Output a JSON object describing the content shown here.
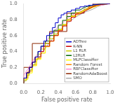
{
  "chart_data": {
    "type": "line",
    "xlabel": "False positive rate",
    "ylabel": "True positive rate",
    "xlim": [
      0.0,
      1.0
    ],
    "ylim": [
      0.0,
      1.0
    ],
    "xticks": [
      {
        "value": 0,
        "label": "0.0"
      },
      0.2,
      0.4,
      0.6,
      0.8,
      {
        "value": 1,
        "label": "1.0"
      }
    ],
    "yticks": [
      {
        "value": 0,
        "label": "0.0"
      },
      0.2,
      0.4,
      0.6,
      0.8,
      {
        "value": 1,
        "label": "1.0"
      }
    ],
    "grid": false,
    "legend": "lower right",
    "series": [
      {
        "name": "ADTree",
        "color": "#0000cc",
        "x": [
          0.0,
          0.0,
          0.033,
          0.033,
          0.066,
          0.066,
          0.1,
          0.1,
          0.133,
          0.133,
          0.166,
          0.166,
          0.2,
          0.2,
          0.233,
          0.233,
          0.266,
          0.266,
          0.3,
          0.3,
          0.333,
          0.333,
          0.366,
          0.366,
          0.4,
          0.4,
          0.433,
          0.433,
          0.466,
          0.466,
          0.5,
          0.5,
          0.55,
          0.55,
          0.6,
          0.6,
          0.65,
          0.65,
          0.7,
          0.7,
          0.75,
          0.75,
          0.8,
          0.8,
          0.85,
          0.9,
          0.95,
          1.0
        ],
        "values": [
          0.0,
          0.066,
          0.066,
          0.132,
          0.132,
          0.2,
          0.2,
          0.266,
          0.266,
          0.33,
          0.33,
          0.4,
          0.4,
          0.466,
          0.466,
          0.53,
          0.53,
          0.6,
          0.6,
          0.63,
          0.63,
          0.7,
          0.7,
          0.76,
          0.76,
          0.82,
          0.82,
          0.86,
          0.86,
          0.88,
          0.88,
          0.9,
          0.9,
          0.92,
          0.92,
          0.94,
          0.94,
          0.96,
          0.96,
          0.97,
          0.97,
          0.98,
          0.98,
          0.99,
          0.99,
          0.995,
          0.995,
          1.0
        ]
      },
      {
        "name": "K-NN",
        "color": "#cc0000",
        "x": [
          0.0,
          0.0,
          0.033,
          0.033,
          0.066,
          0.066,
          0.1,
          0.1,
          0.133,
          0.133,
          0.166,
          0.2,
          0.2,
          0.233,
          0.233,
          0.266,
          0.3,
          0.3,
          0.35,
          0.35,
          0.4,
          0.4,
          0.45,
          0.45,
          0.5,
          0.5,
          0.55,
          0.55,
          0.6,
          0.6,
          0.65,
          0.7,
          0.75,
          0.8,
          0.85,
          0.9,
          0.95,
          1.0
        ],
        "values": [
          0.0,
          0.066,
          0.066,
          0.132,
          0.132,
          0.2,
          0.2,
          0.266,
          0.266,
          0.33,
          0.33,
          0.33,
          0.4,
          0.4,
          0.466,
          0.466,
          0.466,
          0.53,
          0.53,
          0.6,
          0.6,
          0.66,
          0.66,
          0.72,
          0.72,
          0.78,
          0.78,
          0.83,
          0.83,
          0.87,
          0.87,
          0.9,
          0.93,
          0.96,
          0.98,
          0.99,
          0.995,
          1.0
        ]
      },
      {
        "name": "L1 RLR",
        "color": "#cccc00",
        "x": [
          0.0,
          0.0,
          0.033,
          0.033,
          0.066,
          0.066,
          0.1,
          0.1,
          0.133,
          0.133,
          0.166,
          0.166,
          0.2,
          0.2,
          0.25,
          0.25,
          0.3,
          0.3,
          0.35,
          0.35,
          0.4,
          0.4,
          0.45,
          0.45,
          0.5,
          0.5,
          0.55,
          0.55,
          0.6,
          0.6,
          0.65,
          0.7,
          0.75,
          0.8,
          0.85,
          0.9,
          0.95,
          1.0
        ],
        "values": [
          0.0,
          0.033,
          0.033,
          0.1,
          0.1,
          0.166,
          0.166,
          0.233,
          0.233,
          0.3,
          0.3,
          0.366,
          0.366,
          0.43,
          0.43,
          0.5,
          0.5,
          0.56,
          0.56,
          0.62,
          0.62,
          0.68,
          0.68,
          0.74,
          0.74,
          0.8,
          0.8,
          0.85,
          0.85,
          0.89,
          0.89,
          0.92,
          0.94,
          0.96,
          0.98,
          0.99,
          0.995,
          1.0
        ]
      },
      {
        "name": "L2RLR",
        "color": "#006600",
        "x": [
          0.0,
          0.0,
          0.033,
          0.033,
          0.066,
          0.066,
          0.1,
          0.1,
          0.133,
          0.133,
          0.166,
          0.166,
          0.2,
          0.2,
          0.25,
          0.25,
          0.3,
          0.3,
          0.35,
          0.35,
          0.4,
          0.4,
          0.45,
          0.45,
          0.5,
          0.5,
          0.55,
          0.55,
          0.6,
          0.6,
          0.65,
          0.7,
          0.75,
          0.8,
          0.85,
          0.9,
          0.95,
          1.0
        ],
        "values": [
          0.0,
          0.066,
          0.066,
          0.132,
          0.132,
          0.2,
          0.2,
          0.266,
          0.266,
          0.33,
          0.33,
          0.4,
          0.4,
          0.466,
          0.466,
          0.53,
          0.53,
          0.6,
          0.6,
          0.666,
          0.666,
          0.73,
          0.73,
          0.79,
          0.79,
          0.84,
          0.84,
          0.88,
          0.88,
          0.92,
          0.92,
          0.95,
          0.97,
          0.98,
          0.99,
          0.995,
          0.998,
          1.0
        ]
      },
      {
        "name": "MLPClassifier",
        "color": "#ffff00",
        "x": [
          0.0,
          0.0,
          0.05,
          0.05,
          0.1,
          0.1,
          0.15,
          0.15,
          0.2,
          0.2,
          0.25,
          0.25,
          0.3,
          0.3,
          0.35,
          0.35,
          0.4,
          0.4,
          0.45,
          0.45,
          0.5,
          0.5,
          0.55,
          0.55,
          0.6,
          0.65,
          0.7,
          0.75,
          0.8,
          0.85,
          0.9,
          0.95,
          1.0
        ],
        "values": [
          0.0,
          0.05,
          0.05,
          0.13,
          0.13,
          0.22,
          0.22,
          0.3,
          0.3,
          0.38,
          0.38,
          0.46,
          0.46,
          0.53,
          0.53,
          0.6,
          0.6,
          0.67,
          0.67,
          0.73,
          0.73,
          0.79,
          0.79,
          0.84,
          0.84,
          0.88,
          0.91,
          0.93,
          0.95,
          0.97,
          0.99,
          0.995,
          1.0
        ]
      },
      {
        "name": "Random Forest",
        "color": "#ff8800",
        "x": [
          0.0,
          0.0,
          0.05,
          0.05,
          0.1,
          0.1,
          0.15,
          0.15,
          0.2,
          0.2,
          0.25,
          0.25,
          0.3,
          0.3,
          0.35,
          0.35,
          0.4,
          0.4,
          0.45,
          0.45,
          0.5,
          0.5,
          0.55,
          0.6,
          0.65,
          0.7,
          0.75,
          0.8,
          0.85,
          0.9,
          0.95,
          1.0
        ],
        "values": [
          0.0,
          0.066,
          0.066,
          0.15,
          0.15,
          0.23,
          0.23,
          0.31,
          0.31,
          0.38,
          0.38,
          0.46,
          0.46,
          0.53,
          0.53,
          0.6,
          0.6,
          0.67,
          0.67,
          0.73,
          0.73,
          0.79,
          0.82,
          0.86,
          0.89,
          0.92,
          0.95,
          0.97,
          0.99,
          0.995,
          0.998,
          1.0
        ]
      },
      {
        "name": "RBFClassifier",
        "color": "#ff88cc",
        "x": [
          0.0,
          0.0,
          0.05,
          0.1,
          0.15,
          0.2,
          0.25,
          0.3,
          0.35,
          0.4,
          0.45,
          0.5,
          0.55,
          0.6,
          0.65,
          0.7,
          0.75,
          0.8,
          0.85,
          0.9,
          0.95,
          1.0
        ],
        "values": [
          0.0,
          0.1,
          0.18,
          0.27,
          0.35,
          0.43,
          0.51,
          0.58,
          0.65,
          0.71,
          0.76,
          0.81,
          0.85,
          0.88,
          0.9,
          0.92,
          0.94,
          0.96,
          0.97,
          0.98,
          0.99,
          1.0
        ]
      },
      {
        "name": "RandomAdaBoost",
        "color": "#8b2500",
        "x": [
          0.0,
          0.0,
          0.1,
          0.1,
          0.3,
          0.3,
          0.5,
          0.5,
          0.7,
          0.7,
          0.75,
          0.75,
          0.8,
          0.8,
          1.0
        ],
        "values": [
          0.0,
          0.2,
          0.2,
          0.5,
          0.5,
          0.65,
          0.65,
          0.88,
          0.88,
          0.93,
          0.93,
          0.96,
          0.96,
          1.0,
          1.0
        ]
      },
      {
        "name": "SMO",
        "color": "#aaaaaa",
        "x": [
          0.0,
          0.05,
          0.1,
          0.15,
          0.2,
          0.25,
          0.3,
          0.35,
          0.4,
          0.45,
          0.5,
          0.55,
          0.6,
          0.65,
          0.7,
          0.75,
          0.8,
          0.85,
          0.9,
          0.95,
          1.0
        ],
        "values": [
          0.0,
          0.1,
          0.2,
          0.28,
          0.36,
          0.44,
          0.51,
          0.58,
          0.64,
          0.7,
          0.75,
          0.79,
          0.83,
          0.86,
          0.89,
          0.91,
          0.93,
          0.96,
          0.98,
          0.99,
          1.0
        ]
      }
    ]
  }
}
